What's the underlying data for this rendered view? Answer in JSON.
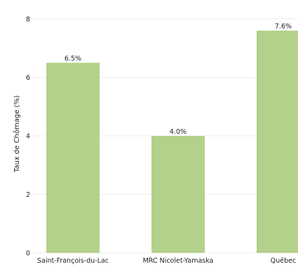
{
  "chart_data": {
    "type": "bar",
    "categories": [
      "Saint-François-du-Lac",
      "MRC Nicolet-Yamaska",
      "Québec"
    ],
    "values": [
      6.5,
      4.0,
      7.6
    ],
    "value_labels": [
      "6.5%",
      "4.0%",
      "7.6%"
    ],
    "title": "",
    "xlabel": "",
    "ylabel": "Taux de Chômage (%)",
    "ylim": [
      0,
      8
    ],
    "yticks": [
      0,
      2,
      4,
      6,
      8
    ],
    "grid": "horizontal",
    "bar_color": "#b3d18a"
  }
}
